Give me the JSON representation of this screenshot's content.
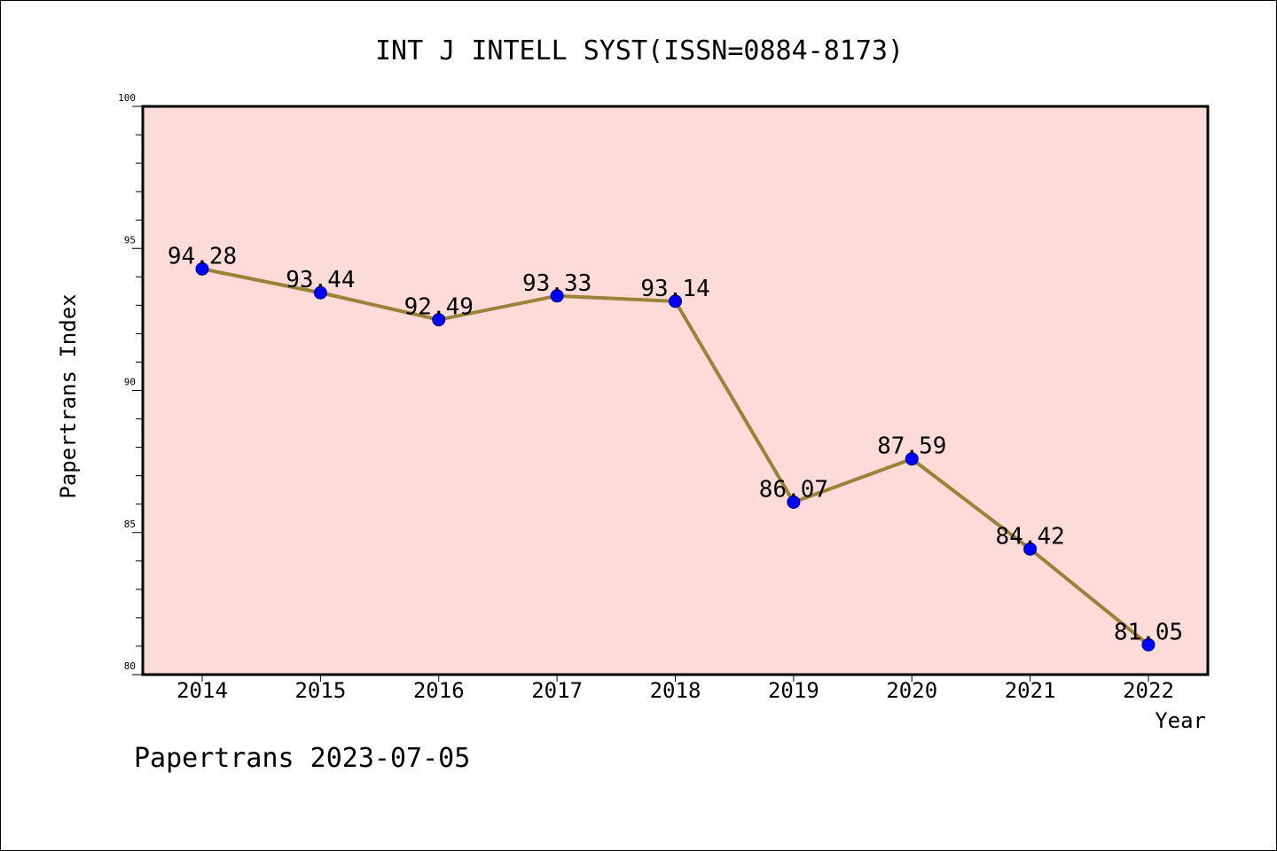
{
  "chart_data": {
    "type": "line",
    "title": "INT J INTELL SYST(ISSN=0884-8173)",
    "xlabel": "Year",
    "ylabel": "Papertrans Index",
    "x": [
      "2014",
      "2015",
      "2016",
      "2017",
      "2018",
      "2019",
      "2020",
      "2021",
      "2022"
    ],
    "values": [
      94.28,
      93.44,
      92.49,
      93.33,
      93.14,
      86.07,
      87.59,
      84.42,
      81.05
    ],
    "data_labels": [
      "94.28",
      "93.44",
      "92.49",
      "93.33",
      "93.14",
      "86.07",
      "87.59",
      "84.42",
      "81.05"
    ],
    "ylim": [
      80,
      100
    ],
    "yticks": [
      80,
      85,
      90,
      95,
      100
    ],
    "ytick_labels": [
      "80",
      "85",
      "90",
      "95",
      "100"
    ],
    "grid": false,
    "legend": "none",
    "footer": "Papertrans 2023-07-05",
    "colors": {
      "plot_background": "#fddbd8",
      "line": "#9a8238",
      "marker": "#0000ff",
      "axis": "#000000"
    }
  }
}
